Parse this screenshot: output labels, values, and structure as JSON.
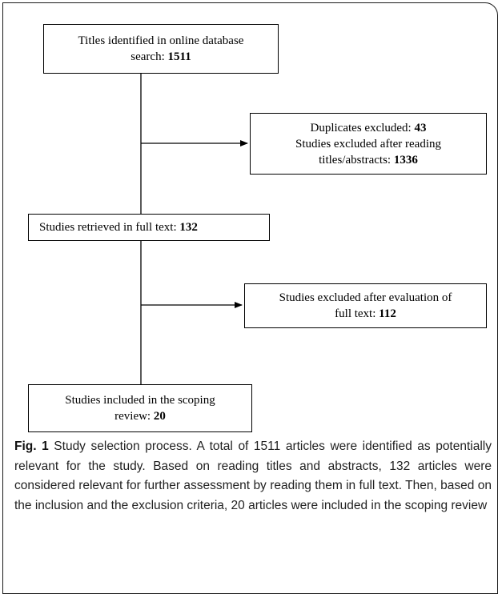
{
  "flowchart": {
    "box1": {
      "text": "Titles identified in online database",
      "text2": "search: ",
      "value": "1511"
    },
    "box2": {
      "line1": "Duplicates excluded: ",
      "value1": "43",
      "line2": "Studies excluded after reading",
      "line3": "titles/abstracts: ",
      "value2": "1336"
    },
    "box3": {
      "text": "Studies retrieved in full text: ",
      "value": "132"
    },
    "box4": {
      "line1": "Studies excluded after evaluation of",
      "line2": "full text: ",
      "value": "112"
    },
    "box5": {
      "line1": "Studies included in the scoping",
      "line2": "review: ",
      "value": "20"
    }
  },
  "caption": {
    "label": "Fig. 1",
    "text": " Study selection process. A total of 1511 articles were identified as potentially relevant for the study. Based on reading titles and abstracts, 132 articles were considered relevant for further assessment by reading them in full text. Then, based on the inclusion and the exclusion criteria, 20 articles were included in the scoping review"
  }
}
